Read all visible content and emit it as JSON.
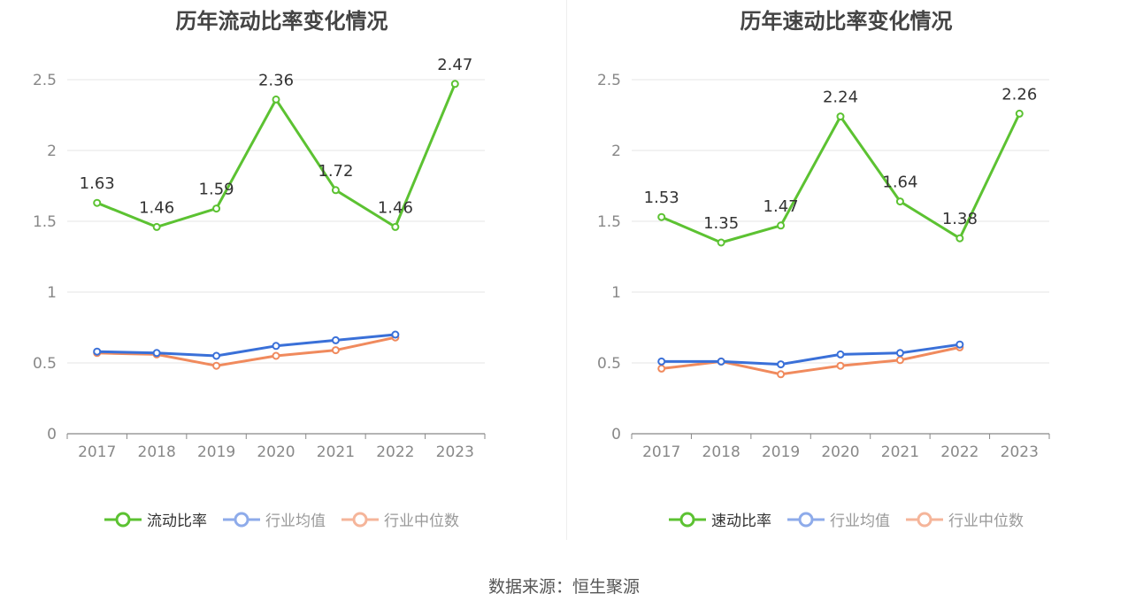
{
  "charts": [
    {
      "title": "历年流动比率变化情况",
      "legend": [
        "流动比率",
        "行业均值",
        "行业中位数"
      ]
    },
    {
      "title": "历年速动比率变化情况",
      "legend": [
        "速动比率",
        "行业均值",
        "行业中位数"
      ]
    }
  ],
  "source": "数据来源：恒生聚源",
  "colors": {
    "main": "#5cc232",
    "avg": "#3a70d8",
    "median": "#f08a5d",
    "avg_legend": "#8eabea",
    "median_legend": "#f5b59a",
    "grid": "#e6e6e6",
    "axis": "#888888",
    "tick": "#888888"
  },
  "chart_data": [
    {
      "type": "line",
      "title": "历年流动比率变化情况",
      "categories": [
        "2017",
        "2018",
        "2019",
        "2020",
        "2021",
        "2022",
        "2023"
      ],
      "ylim": [
        0,
        2.5
      ],
      "yticks": [
        0,
        0.5,
        1,
        1.5,
        2,
        2.5
      ],
      "ytick_labels": [
        "0",
        "0.5",
        "1",
        "1.5",
        "2",
        "2.5"
      ],
      "grid": true,
      "legend_position": "bottom",
      "series": [
        {
          "name": "流动比率",
          "values": [
            1.63,
            1.46,
            1.59,
            2.36,
            1.72,
            1.46,
            2.47
          ],
          "labels": [
            "1.63",
            "1.46",
            "1.59",
            "2.36",
            "1.72",
            "1.46",
            "2.47"
          ]
        },
        {
          "name": "行业均值",
          "values": [
            0.58,
            0.57,
            0.55,
            0.62,
            0.66,
            0.7,
            null
          ]
        },
        {
          "name": "行业中位数",
          "values": [
            0.57,
            0.56,
            0.48,
            0.55,
            0.59,
            0.68,
            null
          ]
        }
      ]
    },
    {
      "type": "line",
      "title": "历年速动比率变化情况",
      "categories": [
        "2017",
        "2018",
        "2019",
        "2020",
        "2021",
        "2022",
        "2023"
      ],
      "ylim": [
        0,
        2.5
      ],
      "yticks": [
        0,
        0.5,
        1,
        1.5,
        2,
        2.5
      ],
      "ytick_labels": [
        "0",
        "0.5",
        "1",
        "1.5",
        "2",
        "2.5"
      ],
      "grid": true,
      "legend_position": "bottom",
      "series": [
        {
          "name": "速动比率",
          "values": [
            1.53,
            1.35,
            1.47,
            2.24,
            1.64,
            1.38,
            2.26
          ],
          "labels": [
            "1.53",
            "1.35",
            "1.47",
            "2.24",
            "1.64",
            "1.38",
            "2.26"
          ]
        },
        {
          "name": "行业均值",
          "values": [
            0.51,
            0.51,
            0.49,
            0.56,
            0.57,
            0.63,
            null
          ]
        },
        {
          "name": "行业中位数",
          "values": [
            0.46,
            0.51,
            0.42,
            0.48,
            0.52,
            0.61,
            null
          ]
        }
      ]
    }
  ]
}
